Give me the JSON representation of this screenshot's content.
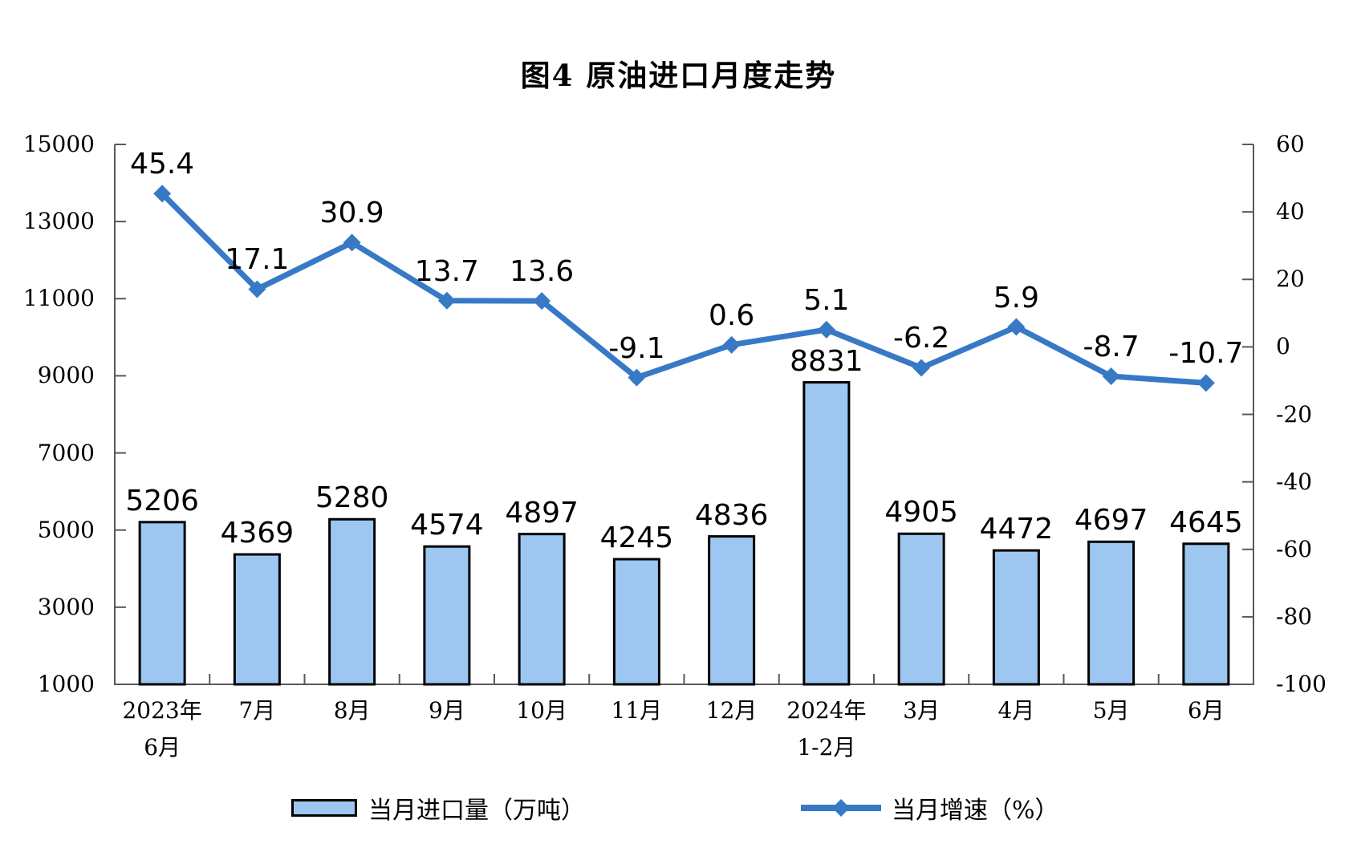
{
  "title": "图4 原油进口月度走势",
  "legend": {
    "bar_label": "当月进口量（万吨）",
    "line_label": "当月增速（%）"
  },
  "colors": {
    "bar_fill": "#9DC7F0",
    "bar_border": "#000000",
    "line": "#3879C6",
    "axis": "#595959",
    "text": "#000000"
  },
  "chart_data": {
    "type": "bar",
    "subtype": "combo-bar-line-dual-axis",
    "title": "图4 原油进口月度走势",
    "legend_position": "bottom",
    "grid": false,
    "categories": [
      {
        "line1": "2023年",
        "line2": "6月"
      },
      {
        "line1": "7月",
        "line2": ""
      },
      {
        "line1": "8月",
        "line2": ""
      },
      {
        "line1": "9月",
        "line2": ""
      },
      {
        "line1": "10月",
        "line2": ""
      },
      {
        "line1": "11月",
        "line2": ""
      },
      {
        "line1": "12月",
        "line2": ""
      },
      {
        "line1": "2024年",
        "line2": "1-2月"
      },
      {
        "line1": "3月",
        "line2": ""
      },
      {
        "line1": "4月",
        "line2": ""
      },
      {
        "line1": "5月",
        "line2": ""
      },
      {
        "line1": "6月",
        "line2": ""
      }
    ],
    "series": [
      {
        "name": "当月进口量（万吨）",
        "type": "bar",
        "axis": "left",
        "values": [
          5206,
          4369,
          5280,
          4574,
          4897,
          4245,
          4836,
          8831,
          4905,
          4472,
          4697,
          4645
        ]
      },
      {
        "name": "当月增速（%）",
        "type": "line",
        "axis": "right",
        "values": [
          45.4,
          17.1,
          30.9,
          13.7,
          13.6,
          -9.1,
          0.6,
          5.1,
          -6.2,
          5.9,
          -8.7,
          -10.7
        ]
      }
    ],
    "left_axis": {
      "label": "当月进口量（万吨）",
      "min": 1000,
      "max": 15000,
      "step": 2000,
      "ticks": [
        1000,
        3000,
        5000,
        7000,
        9000,
        11000,
        13000,
        15000
      ]
    },
    "right_axis": {
      "label": "当月增速（%）",
      "min": -100,
      "max": 60,
      "step": 20,
      "ticks": [
        -100,
        -80,
        -60,
        -40,
        -20,
        0,
        20,
        40,
        60
      ]
    }
  }
}
